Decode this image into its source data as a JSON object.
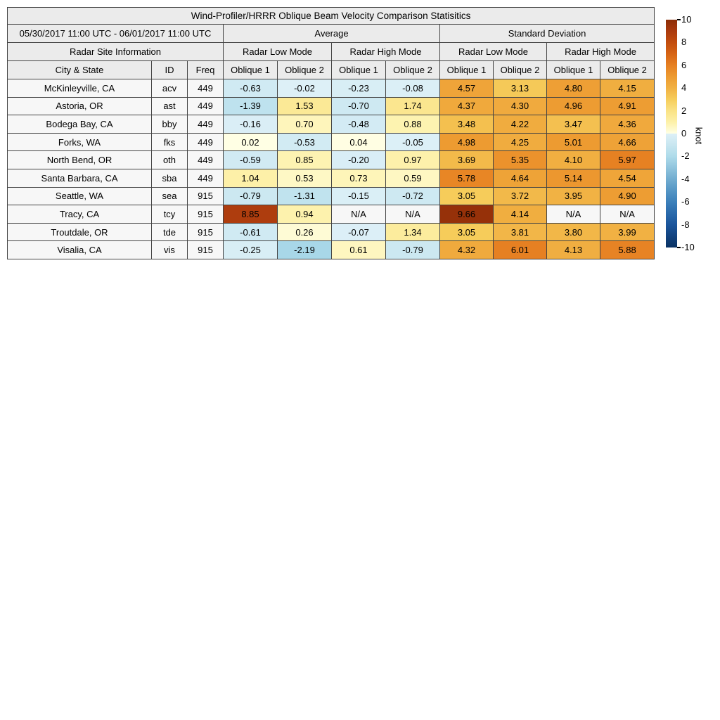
{
  "title": "Wind-Profiler/HRRR Oblique Beam Velocity Comparison Statisitics",
  "table": {
    "date_range": "05/30/2017 11:00 UTC - 06/01/2017 11:00 UTC",
    "group_headers": {
      "average": "Average",
      "std_dev": "Standard Deviation"
    },
    "site_info_header": "Radar Site Information",
    "mode_headers": {
      "low": "Radar Low Mode",
      "high": "Radar High Mode"
    },
    "column_headers": {
      "city": "City & State",
      "id": "ID",
      "freq": "Freq",
      "oblique1": "Oblique 1",
      "oblique2": "Oblique 2"
    },
    "na_text": "N/A",
    "colors": {
      "header_bg": "#ebebeb",
      "label_bg": "#f7f7f7",
      "na_bg": "#f7f7f7",
      "border": "#444444"
    }
  },
  "colorbar": {
    "label": "knot",
    "min": -10,
    "max": 10,
    "ticks": [
      10,
      8,
      6,
      4,
      2,
      0,
      -2,
      -4,
      -6,
      -8,
      -10
    ],
    "positive_stops": [
      [
        0,
        "#ffffe5"
      ],
      [
        1,
        "#fdf1a9"
      ],
      [
        2,
        "#fae286"
      ],
      [
        3,
        "#f6cd5b"
      ],
      [
        4,
        "#f1b143"
      ],
      [
        5,
        "#ed9b31"
      ],
      [
        6,
        "#e68022"
      ],
      [
        7,
        "#d66414"
      ],
      [
        8,
        "#c24d0e"
      ],
      [
        9,
        "#aa3a0e"
      ],
      [
        10,
        "#8c2d07"
      ]
    ],
    "negative_stops": [
      [
        0,
        "#ddf0f7"
      ],
      [
        -1,
        "#c8e6f0"
      ],
      [
        -2,
        "#aedbea"
      ],
      [
        -3,
        "#90c4dd"
      ],
      [
        -4,
        "#72add0"
      ],
      [
        -5,
        "#5596c5"
      ],
      [
        -6,
        "#3c80ba"
      ],
      [
        -7,
        "#2a6aab"
      ],
      [
        -8,
        "#1b559b"
      ],
      [
        -9,
        "#12437f"
      ],
      [
        -10,
        "#0a3263"
      ]
    ]
  },
  "chart_data": {
    "type": "heatmap",
    "title": "Wind-Profiler/HRRR Oblique Beam Velocity Comparison Statisitics",
    "units": "knot",
    "value_range": [
      -10,
      10
    ],
    "column_groups": [
      {
        "label": "Average",
        "modes": [
          "Radar Low Mode",
          "Radar High Mode"
        ]
      },
      {
        "label": "Standard Deviation",
        "modes": [
          "Radar Low Mode",
          "Radar High Mode"
        ]
      }
    ],
    "sub_columns": [
      "Oblique 1",
      "Oblique 2"
    ],
    "site_columns": [
      "City & State",
      "ID",
      "Freq"
    ],
    "rows": [
      {
        "city": "McKinleyville, CA",
        "id": "acv",
        "freq": "449",
        "values": [
          -0.63,
          -0.02,
          -0.23,
          -0.08,
          4.57,
          3.13,
          4.8,
          4.15
        ]
      },
      {
        "city": "Astoria, OR",
        "id": "ast",
        "freq": "449",
        "values": [
          -1.39,
          1.53,
          -0.7,
          1.74,
          4.37,
          4.3,
          4.96,
          4.91
        ]
      },
      {
        "city": "Bodega Bay, CA",
        "id": "bby",
        "freq": "449",
        "values": [
          -0.16,
          0.7,
          -0.48,
          0.88,
          3.48,
          4.22,
          3.47,
          4.36
        ]
      },
      {
        "city": "Forks, WA",
        "id": "fks",
        "freq": "449",
        "values": [
          0.02,
          -0.53,
          0.04,
          -0.05,
          4.98,
          4.25,
          5.01,
          4.66
        ]
      },
      {
        "city": "North Bend, OR",
        "id": "oth",
        "freq": "449",
        "values": [
          -0.59,
          0.85,
          -0.2,
          0.97,
          3.69,
          5.35,
          4.1,
          5.97
        ]
      },
      {
        "city": "Santa Barbara, CA",
        "id": "sba",
        "freq": "449",
        "values": [
          1.04,
          0.53,
          0.73,
          0.59,
          5.78,
          4.64,
          5.14,
          4.54
        ]
      },
      {
        "city": "Seattle, WA",
        "id": "sea",
        "freq": "915",
        "values": [
          -0.79,
          -1.31,
          -0.15,
          -0.72,
          3.05,
          3.72,
          3.95,
          4.9
        ]
      },
      {
        "city": "Tracy, CA",
        "id": "tcy",
        "freq": "915",
        "values": [
          8.85,
          0.94,
          null,
          null,
          9.66,
          4.14,
          null,
          null
        ]
      },
      {
        "city": "Troutdale, OR",
        "id": "tde",
        "freq": "915",
        "values": [
          -0.61,
          0.26,
          -0.07,
          1.34,
          3.05,
          3.81,
          3.8,
          3.99
        ]
      },
      {
        "city": "Visalia, CA",
        "id": "vis",
        "freq": "915",
        "values": [
          -0.25,
          -2.19,
          0.61,
          -0.79,
          4.32,
          6.01,
          4.13,
          5.88
        ]
      }
    ]
  }
}
